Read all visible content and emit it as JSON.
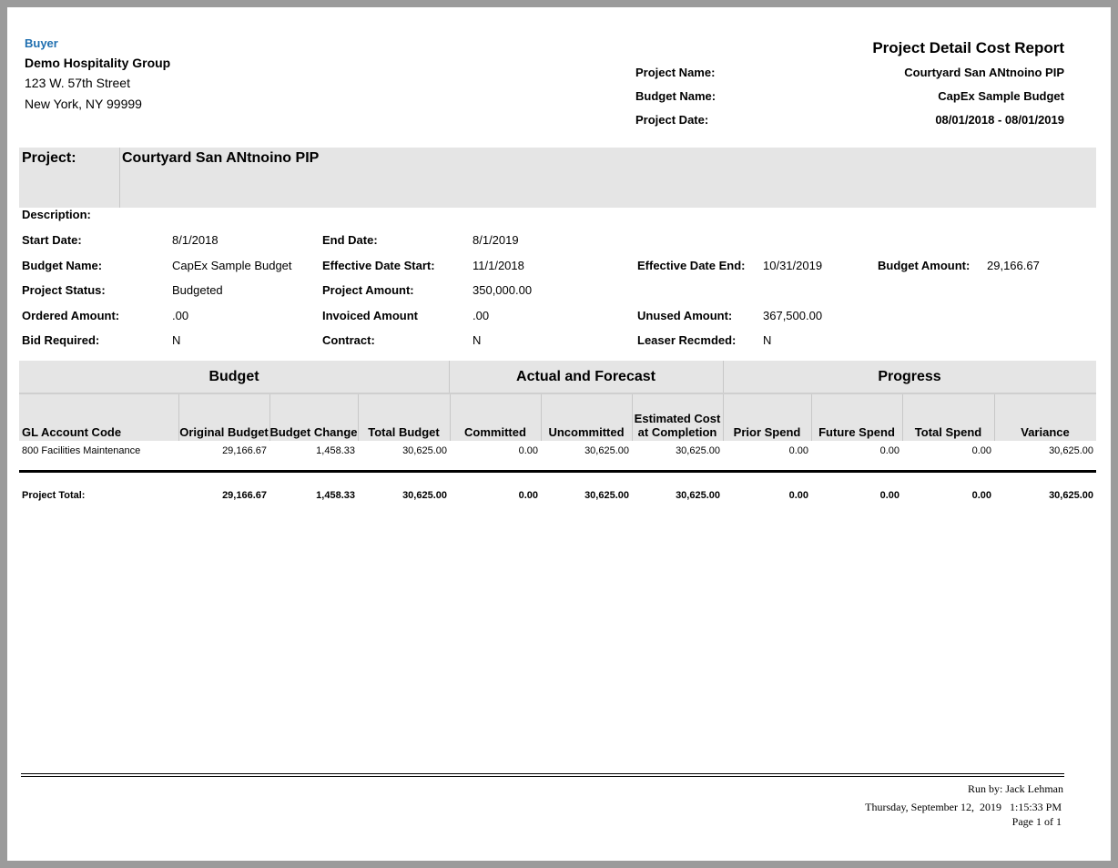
{
  "buyer": {
    "label": "Buyer",
    "name": "Demo Hospitality Group",
    "address1": "123 W. 57th Street",
    "address2": "New York, NY 99999"
  },
  "report": {
    "title": "Project Detail Cost Report",
    "fields": [
      {
        "label": "Project Name:",
        "value": "Courtyard San ANtnoino PIP"
      },
      {
        "label": "Budget Name:",
        "value": "CapEx Sample Budget"
      },
      {
        "label": "Project Date:",
        "value": "08/01/2018 - 08/01/2019"
      }
    ]
  },
  "project": {
    "label": "Project:",
    "name": "Courtyard San ANtnoino PIP",
    "description_label": "Description:"
  },
  "details": [
    [
      {
        "label": "Start Date:",
        "value": "8/1/2018"
      },
      {
        "label": "End Date:",
        "value": "8/1/2019"
      }
    ],
    [
      {
        "label": "Budget Name:",
        "value": "CapEx Sample Budget"
      },
      {
        "label": "Effective Date Start:",
        "value": "11/1/2018"
      },
      {
        "label": "Effective Date End:",
        "value": "10/31/2019"
      },
      {
        "label": "Budget Amount:",
        "value": "29,166.67"
      }
    ],
    [
      {
        "label": "Project Status:",
        "value": "Budgeted"
      },
      {
        "label": "Project Amount:",
        "value": "350,000.00"
      }
    ],
    [
      {
        "label": "Ordered Amount:",
        "value": ".00"
      },
      {
        "label": "Invoiced Amount",
        "value": ".00"
      },
      {
        "label": "Unused Amount:",
        "value": "367,500.00"
      }
    ],
    [
      {
        "label": "Bid Required:",
        "value": "N"
      },
      {
        "label": "Contract:",
        "value": "N"
      },
      {
        "label": "Leaser Recmded:",
        "value": "N"
      }
    ]
  ],
  "table": {
    "groups": [
      "Budget",
      "Actual and Forecast",
      "Progress"
    ],
    "columns": [
      "GL Account Code",
      "Original Budget",
      "Budget Change",
      "Total Budget",
      "Committed",
      "Uncommitted",
      "Estimated Cost at Completion",
      "Prior Spend",
      "Future Spend",
      "Total Spend",
      "Variance"
    ],
    "rows": [
      [
        "800 Facilities Maintenance",
        "29,166.67",
        "1,458.33",
        "30,625.00",
        "0.00",
        "30,625.00",
        "30,625.00",
        "0.00",
        "0.00",
        "0.00",
        "30,625.00"
      ]
    ],
    "total": [
      "Project Total:",
      "29,166.67",
      "1,458.33",
      "30,625.00",
      "0.00",
      "30,625.00",
      "30,625.00",
      "0.00",
      "0.00",
      "0.00",
      "30,625.00"
    ]
  },
  "footer": {
    "run_by": "Run by: Jack Lehman",
    "datetime": "Thursday, September 12,  2019   1:15:33 PM",
    "page": "Page 1 of 1"
  }
}
